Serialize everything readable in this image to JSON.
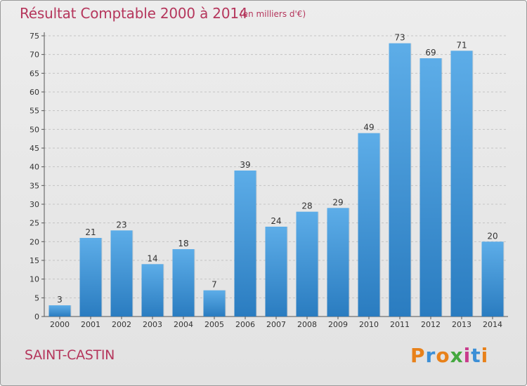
{
  "header": {
    "title": "Résultat Comptable 2000 à 2014",
    "unit": "(en milliers d'€)"
  },
  "footer": {
    "commune": "SAINT-CASTIN",
    "logo": "Proxiti"
  },
  "colors": {
    "title": "#b5365c",
    "bar_top": "#5dade8",
    "bar_bottom": "#2a7cc0",
    "logo": [
      "#e8811a",
      "#3c8fd6",
      "#e8811a",
      "#44a83f",
      "#c93b8c",
      "#3c8fd6",
      "#e8811a"
    ]
  },
  "chart_data": {
    "type": "bar",
    "title": "Résultat Comptable 2000 à 2014",
    "categories": [
      "2000",
      "2001",
      "2002",
      "2003",
      "2004",
      "2005",
      "2006",
      "2007",
      "2008",
      "2009",
      "2010",
      "2011",
      "2012",
      "2013",
      "2014"
    ],
    "values": [
      3,
      21,
      23,
      14,
      18,
      7,
      39,
      24,
      28,
      29,
      49,
      73,
      69,
      71,
      20
    ],
    "ylim": [
      0,
      75
    ],
    "yticks": [
      0,
      5,
      10,
      15,
      20,
      25,
      30,
      35,
      40,
      45,
      50,
      55,
      60,
      65,
      70,
      75
    ],
    "grid": true,
    "data_labels": true
  }
}
